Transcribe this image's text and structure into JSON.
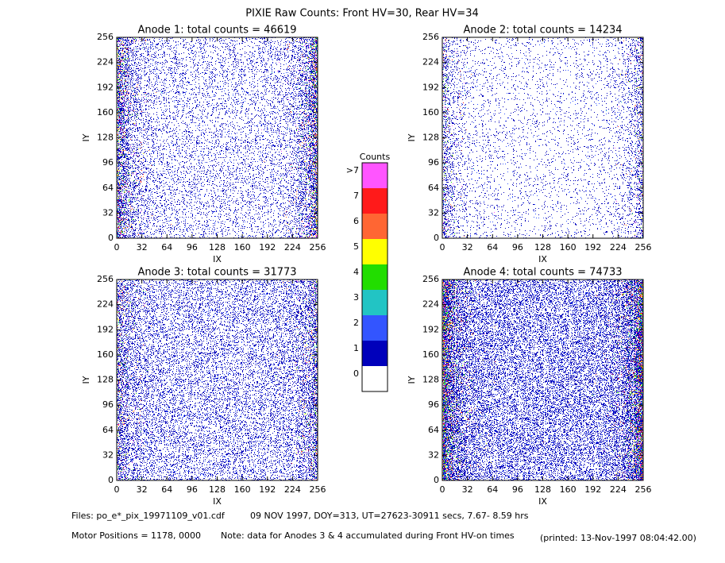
{
  "title": "PIXIE Raw Counts:  Front HV=30, Rear HV=34",
  "chart_data": [
    {
      "type": "heatmap",
      "title": "Anode 1: total counts = 46619",
      "x_label": "IX",
      "y_label": "IY",
      "xlim": [
        0,
        256
      ],
      "ylim": [
        0,
        256
      ],
      "xticks": [
        0,
        32,
        64,
        96,
        128,
        160,
        192,
        224,
        256
      ],
      "yticks": [
        0,
        32,
        64,
        96,
        128,
        160,
        192,
        224,
        256
      ]
    },
    {
      "type": "heatmap",
      "title": "Anode 2: total counts = 14234",
      "x_label": "IX",
      "y_label": "IY",
      "xlim": [
        0,
        256
      ],
      "ylim": [
        0,
        256
      ],
      "xticks": [
        0,
        32,
        64,
        96,
        128,
        160,
        192,
        224,
        256
      ],
      "yticks": [
        0,
        32,
        64,
        96,
        128,
        160,
        192,
        224,
        256
      ]
    },
    {
      "type": "heatmap",
      "title": "Anode 3: total counts = 31773",
      "x_label": "IX",
      "y_label": "IY",
      "xlim": [
        0,
        256
      ],
      "ylim": [
        0,
        256
      ],
      "xticks": [
        0,
        32,
        64,
        96,
        128,
        160,
        192,
        224,
        256
      ],
      "yticks": [
        0,
        32,
        64,
        96,
        128,
        160,
        192,
        224,
        256
      ]
    },
    {
      "type": "heatmap",
      "title": "Anode 4: total counts = 74733",
      "x_label": "IX",
      "y_label": "IY",
      "xlim": [
        0,
        256
      ],
      "ylim": [
        0,
        256
      ],
      "xticks": [
        0,
        32,
        64,
        96,
        128,
        160,
        192,
        224,
        256
      ],
      "yticks": [
        0,
        32,
        64,
        96,
        128,
        160,
        192,
        224,
        256
      ]
    }
  ],
  "colorbar": {
    "title": "Counts",
    "ticks": [
      0,
      1,
      2,
      3,
      4,
      5,
      6,
      7,
      {
        "value": 8,
        "label": ">7"
      }
    ],
    "colors": [
      "#ffffff",
      "#0000bb",
      "#3355ff",
      "#22c4c4",
      "#22dd00",
      "#ffff00",
      "#ff6633",
      "#ff1a1a",
      "#ff55ff"
    ]
  },
  "footer": {
    "files": "Files: po_e*_pix_19971109_v01.cdf",
    "date": "09 NOV 1997, DOY=313, UT=27623-30911 secs,  7.67- 8.59 hrs",
    "motor": "Motor Positions = 1178, 0000",
    "note": "Note: data for Anodes 3 & 4 accumulated during Front HV-on times",
    "printed": "(printed: 13-Nov-1997 08:04:42.00)"
  }
}
